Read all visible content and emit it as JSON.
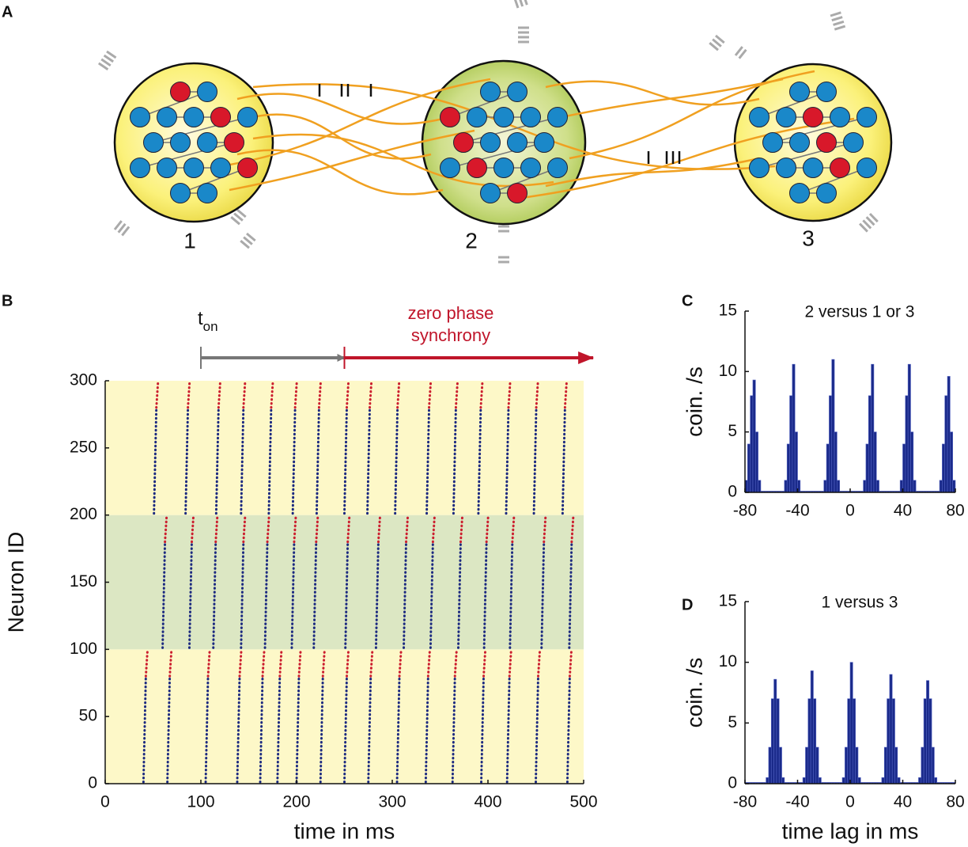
{
  "panel_labels": [
    "A",
    "B",
    "C",
    "D"
  ],
  "diagram": {
    "nodes": [
      {
        "label": "1"
      },
      {
        "label": "2"
      },
      {
        "label": "3"
      }
    ]
  },
  "chart_data": [
    {
      "type": "raster",
      "xlabel": "time in ms",
      "ylabel": "Neuron ID",
      "xlim": [
        0,
        500
      ],
      "ylim": [
        0,
        300
      ],
      "xticks": [
        0,
        100,
        200,
        300,
        400,
        500
      ],
      "yticks": [
        0,
        50,
        100,
        150,
        200,
        250,
        300
      ],
      "spike_color": "#1c2a80",
      "red_color": "#cc1f2f",
      "annotations": [
        {
          "text": "t",
          "subscript": "on",
          "x": [
            100,
            250
          ],
          "color": "#777777"
        },
        {
          "lines": [
            "zero phase",
            "synchrony"
          ],
          "x": [
            250,
            510
          ],
          "color": "#c0152a"
        }
      ],
      "populations": [
        {
          "ids": [
            0,
            100
          ],
          "red_ids": [
            80,
            100
          ],
          "color": "#fdf8c8",
          "bursts": [
            40,
            65,
            105,
            138,
            162,
            180,
            200,
            225,
            250,
            275,
            305,
            335,
            363,
            393,
            420,
            450,
            483
          ]
        },
        {
          "ids": [
            100,
            200
          ],
          "red_ids": [
            180,
            200
          ],
          "color": "#dce7c3",
          "bursts": [
            60,
            88,
            113,
            142,
            167,
            195,
            218,
            251,
            283,
            312,
            340,
            369,
            396,
            423,
            456,
            485
          ]
        },
        {
          "ids": [
            200,
            300
          ],
          "red_ids": [
            280,
            300
          ],
          "color": "#fdf8c8",
          "bursts": [
            51,
            84,
            116,
            142,
            171,
            196,
            221,
            250,
            274,
            303,
            336,
            364,
            390,
            419,
            448,
            478
          ]
        }
      ]
    },
    {
      "type": "histogram",
      "title": "2 versus 1 or 3",
      "ylabel": "coin. /s",
      "xlim": [
        -80,
        80
      ],
      "ylim": [
        0,
        15
      ],
      "xticks": [
        -80,
        -40,
        0,
        40,
        80
      ],
      "yticks": [
        0,
        5,
        10,
        15
      ],
      "color": "#1a2a8a",
      "bins": [
        -80,
        -78,
        -76,
        -74,
        -72,
        -70,
        -68,
        -66,
        -64,
        -62,
        -60,
        -58,
        -56,
        -54,
        -52,
        -50,
        -48,
        -46,
        -44,
        -42,
        -40,
        -38,
        -36,
        -34,
        -32,
        -30,
        -28,
        -26,
        -24,
        -22,
        -20,
        -18,
        -16,
        -14,
        -12,
        -10,
        -8,
        -6,
        -4,
        -2,
        0,
        2,
        4,
        6,
        8,
        10,
        12,
        14,
        16,
        18,
        20,
        22,
        24,
        26,
        28,
        30,
        32,
        34,
        36,
        38,
        40,
        42,
        44,
        46,
        48,
        50,
        52,
        54,
        56,
        58,
        60,
        62,
        64,
        66,
        68,
        70,
        72,
        74,
        76,
        78,
        80
      ],
      "counts": [
        1,
        4,
        8,
        9.3,
        5,
        1,
        0.1,
        0.1,
        0.1,
        0.1,
        0.1,
        0.1,
        0.1,
        0.1,
        0.1,
        1,
        4,
        8,
        10.6,
        5,
        1,
        0.1,
        0.1,
        0.1,
        0.1,
        0.1,
        0.1,
        0.1,
        0.1,
        0.1,
        1,
        4,
        8,
        11,
        5,
        1,
        0.1,
        0.1,
        0.1,
        0.1,
        0.1,
        0.1,
        0.1,
        0.1,
        0.1,
        1,
        4,
        8,
        10.6,
        5,
        1,
        0.1,
        0.1,
        0.1,
        0.1,
        0.1,
        0.1,
        0.1,
        0.1,
        1,
        4,
        8,
        10.6,
        5,
        1,
        0.1,
        0.1,
        0.1,
        0.1,
        0.1,
        0.1,
        0.1,
        0.1,
        0.1,
        1,
        4,
        8,
        9.6,
        5,
        1
      ]
    },
    {
      "type": "histogram",
      "title": "1 versus 3",
      "ylabel": "coin. /s",
      "xlabel": "time lag in ms",
      "xlim": [
        -80,
        80
      ],
      "ylim": [
        0,
        15
      ],
      "xticks": [
        -80,
        -40,
        0,
        40,
        80
      ],
      "yticks": [
        0,
        5,
        10,
        15
      ],
      "color": "#1a2a8a",
      "bins": [
        -80,
        -78,
        -76,
        -74,
        -72,
        -70,
        -68,
        -66,
        -64,
        -62,
        -60,
        -58,
        -56,
        -54,
        -52,
        -50,
        -48,
        -46,
        -44,
        -42,
        -40,
        -38,
        -36,
        -34,
        -32,
        -30,
        -28,
        -26,
        -24,
        -22,
        -20,
        -18,
        -16,
        -14,
        -12,
        -10,
        -8,
        -6,
        -4,
        -2,
        0,
        2,
        4,
        6,
        8,
        10,
        12,
        14,
        16,
        18,
        20,
        22,
        24,
        26,
        28,
        30,
        32,
        34,
        36,
        38,
        40,
        42,
        44,
        46,
        48,
        50,
        52,
        54,
        56,
        58,
        60,
        62,
        64,
        66,
        68,
        70,
        72,
        74,
        76,
        78,
        80
      ],
      "counts": [
        0.1,
        0.1,
        0.1,
        0.1,
        0.1,
        0.1,
        0.1,
        0.1,
        0.5,
        3,
        7,
        8.6,
        7,
        3,
        0.5,
        0.1,
        0.1,
        0.1,
        0.1,
        0.1,
        0.1,
        0.1,
        0.5,
        3,
        7,
        9.3,
        7,
        3,
        0.5,
        0.1,
        0.1,
        0.1,
        0.1,
        0.1,
        0.1,
        0.1,
        0.1,
        0.5,
        3,
        7,
        10,
        7,
        3,
        0.5,
        0.1,
        0.1,
        0.1,
        0.1,
        0.1,
        0.1,
        0.1,
        0.1,
        0.5,
        3,
        7,
        9,
        7,
        3,
        0.5,
        0.1,
        0.1,
        0.1,
        0.1,
        0.1,
        0.1,
        0.1,
        0.5,
        3,
        7,
        8.5,
        7,
        3,
        0.5,
        0.1,
        0.1,
        0.1,
        0.1,
        0.1,
        0.1,
        0.1
      ]
    }
  ]
}
